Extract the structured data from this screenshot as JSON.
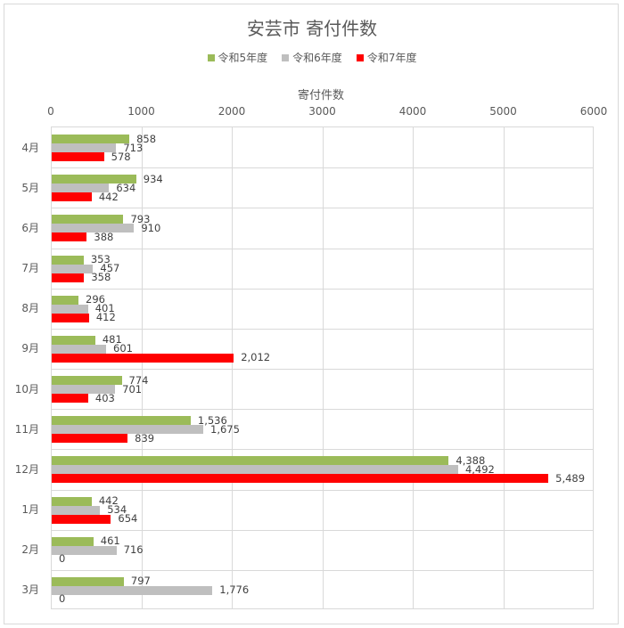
{
  "chart_data": {
    "type": "bar",
    "orientation": "horizontal",
    "title": "安芸市 寄付件数",
    "xlabel": "寄付件数",
    "ylabel": "",
    "xlim": [
      0,
      6000
    ],
    "xticks": [
      "0",
      "1000",
      "2000",
      "3000",
      "4000",
      "5000",
      "6000"
    ],
    "grid": true,
    "legend_position": "top",
    "categories": [
      "4月",
      "5月",
      "6月",
      "7月",
      "8月",
      "9月",
      "10月",
      "11月",
      "12月",
      "1月",
      "2月",
      "3月"
    ],
    "series": [
      {
        "name": "令和5年度",
        "color": "#9bbb59",
        "values": [
          858,
          934,
          793,
          353,
          296,
          481,
          774,
          1536,
          4388,
          442,
          461,
          797
        ],
        "labels": [
          "858",
          "934",
          "793",
          "353",
          "296",
          "481",
          "774",
          "1,536",
          "4,388",
          "442",
          "461",
          "797"
        ]
      },
      {
        "name": "令和6年度",
        "color": "#bfbfbf",
        "values": [
          713,
          634,
          910,
          457,
          401,
          601,
          701,
          1675,
          4492,
          534,
          716,
          1776
        ],
        "labels": [
          "713",
          "634",
          "910",
          "457",
          "401",
          "601",
          "701",
          "1,675",
          "4,492",
          "534",
          "716",
          "1,776"
        ]
      },
      {
        "name": "令和7年度",
        "color": "#ff0000",
        "values": [
          578,
          442,
          388,
          358,
          412,
          2012,
          403,
          839,
          5489,
          654,
          0,
          0
        ],
        "labels": [
          "578",
          "442",
          "388",
          "358",
          "412",
          "2,012",
          "403",
          "839",
          "5,489",
          "654",
          "0",
          "0"
        ]
      }
    ]
  }
}
